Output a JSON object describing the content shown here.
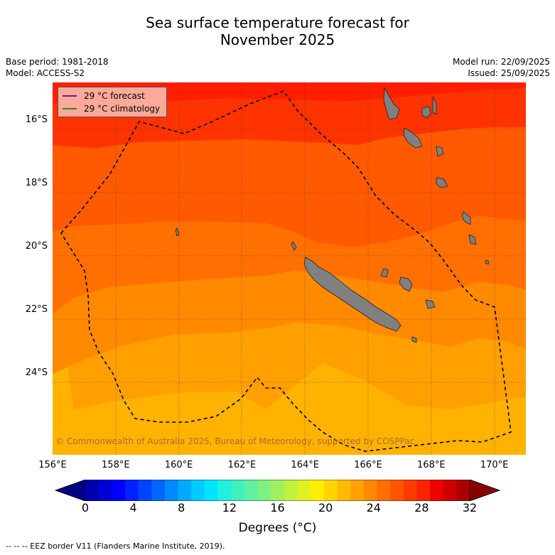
{
  "title": {
    "line1": "Sea surface temperature forecast for",
    "line2": "November 2025"
  },
  "info": {
    "base_period": "Base period: 1981-2018",
    "model": "Model: ACCESS-S2",
    "model_run": "Model run: 22/09/2025",
    "issued": "Issued: 25/09/2025"
  },
  "map": {
    "lat_labels": [
      "16°S",
      "18°S",
      "20°S",
      "22°S",
      "24°S"
    ],
    "lon_labels": [
      "156°E",
      "158°E",
      "160°E",
      "162°E",
      "164°E",
      "166°E",
      "168°E",
      "170°E"
    ],
    "lon_range": [
      156,
      171
    ],
    "lat_range": [
      -14.8,
      -26.6
    ],
    "lat_ticks": [
      -16,
      -18,
      -20,
      -22,
      -24
    ],
    "lon_ticks": [
      156,
      158,
      160,
      162,
      164,
      166,
      168,
      170
    ],
    "copyright": "© Commonwealth of Australia 2025, Bureau of Meteorology, supported by COSPPac"
  },
  "legend": {
    "forecast_label": "29 °C  forecast",
    "climatology_label": "29 °C  climatology",
    "forecast_color": "#6a1b8a",
    "climatology_color": "#2e8b2e"
  },
  "colorbar": {
    "ticks": [
      "0",
      "4",
      "8",
      "12",
      "16",
      "20",
      "24",
      "28",
      "32"
    ],
    "title": "Degrees (°C)",
    "colors": [
      "#000080",
      "#0000b0",
      "#0000d8",
      "#0000ff",
      "#0022ff",
      "#0044ff",
      "#0066ff",
      "#0088ff",
      "#00aaff",
      "#00ccff",
      "#00e5ff",
      "#20f0e0",
      "#40f0c0",
      "#60f0a0",
      "#80f080",
      "#a0f060",
      "#c0f040",
      "#e0f020",
      "#ffee00",
      "#ffd500",
      "#ffbb00",
      "#ffa200",
      "#ff8800",
      "#ff6e00",
      "#ff5500",
      "#ff3b00",
      "#ff2200",
      "#ee0000",
      "#cc0000",
      "#aa0000",
      "#880000"
    ],
    "min": 0,
    "max": 32
  },
  "footer": "-- -- -- EEZ border V11 (Flanders Marine Institute, 2019).",
  "chart_data": {
    "type": "heatmap",
    "title": "Sea surface temperature forecast for November 2025",
    "xlabel": "",
    "ylabel": "",
    "units": "Degrees (°C)",
    "bands_north_to_south": [
      {
        "range": "29-30",
        "color": "#ff1e00"
      },
      {
        "range": "28-29",
        "color": "#ff3300"
      },
      {
        "range": "27-28",
        "color": "#ff5a00"
      },
      {
        "range": "26-27",
        "color": "#ff7000"
      },
      {
        "range": "25-26",
        "color": "#ff8a00"
      },
      {
        "range": "24-25",
        "color": "#ffa000"
      },
      {
        "range": "23-24",
        "color": "#ffb300"
      }
    ]
  }
}
